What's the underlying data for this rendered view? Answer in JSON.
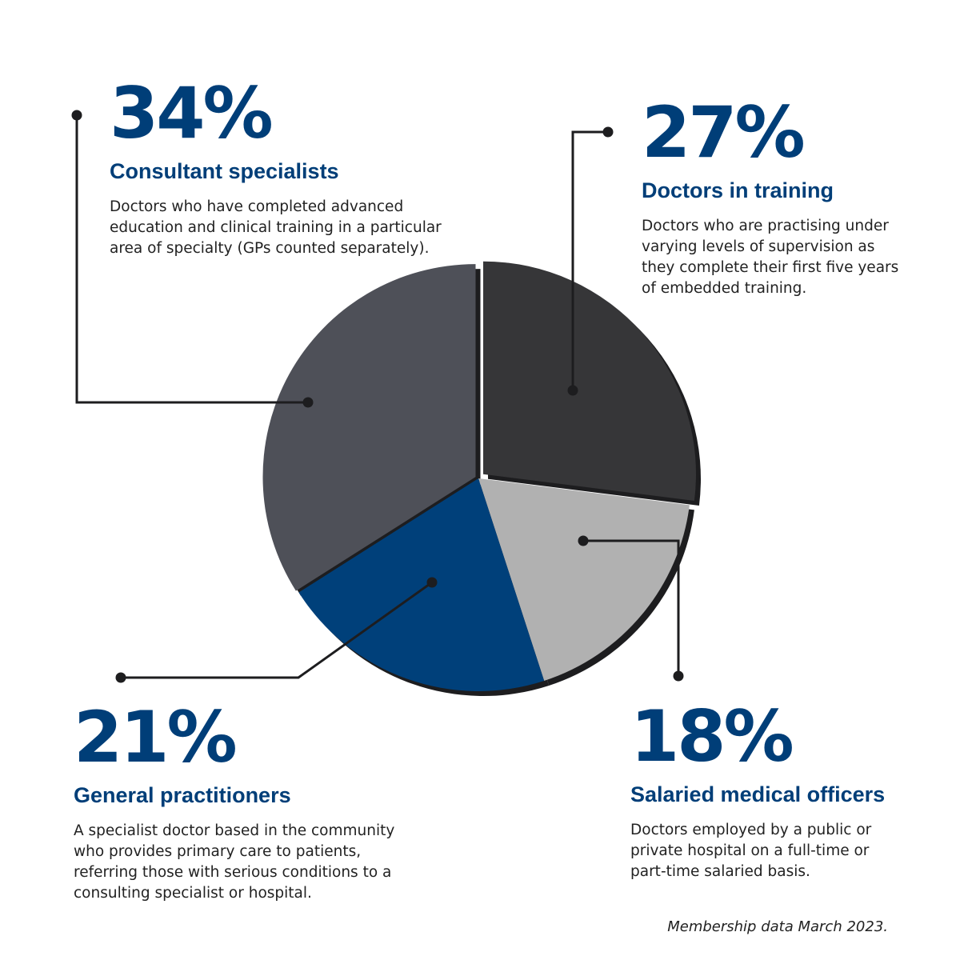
{
  "chart_data": {
    "type": "pie",
    "values": [
      27,
      18,
      21,
      34
    ],
    "labels": [
      "Doctors in training",
      "Salaried medical officers",
      "General practitioners",
      "Consultant specialists"
    ],
    "value_labels": [
      "27%",
      "18%",
      "21%",
      "34%"
    ],
    "descriptions": [
      "Doctors who are practising under varying levels of supervision as they complete their first five years of embedded training.",
      "Doctors employed by a public or private hospital on a full-time or part-time salaried basis.",
      "A specialist doctor based in the community who provides primary care to patients, referring those with serious conditions to a consulting specialist or hospital.",
      "Doctors who have completed advanced education and clinical training in a particular area of specialty (GPs counted separately)."
    ],
    "colors": [
      "#363638",
      "#b1b1b1",
      "#00407a",
      "#4e5058"
    ]
  },
  "accent_color": "#003e78",
  "footnote": "Membership data March 2023."
}
